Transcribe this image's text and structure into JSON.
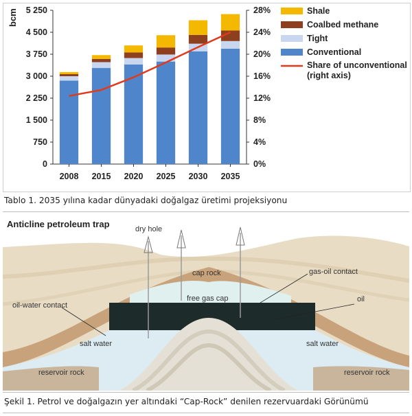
{
  "chart_data": {
    "type": "bar",
    "stacked": true,
    "categories": [
      "2008",
      "2015",
      "2020",
      "2025",
      "2030",
      "2035"
    ],
    "ylabel": "bcm",
    "ylim": [
      0,
      5250
    ],
    "yticks": [
      "0",
      "750",
      "1 500",
      "2 250",
      "3 000",
      "3 750",
      "4 500",
      "5 250"
    ],
    "y2lim": [
      0,
      28
    ],
    "y2ticks": [
      "0%",
      "4%",
      "8%",
      "12%",
      "16%",
      "20%",
      "24%",
      "28%"
    ],
    "series": [
      {
        "name": "Conventional",
        "color": "#4f86cb",
        "values": [
          2850,
          3280,
          3400,
          3500,
          3850,
          3940
        ]
      },
      {
        "name": "Tight",
        "color": "#c9d6ef",
        "values": [
          150,
          200,
          220,
          240,
          260,
          260
        ]
      },
      {
        "name": "Coalbed methane",
        "color": "#8e3f1d",
        "values": [
          70,
          110,
          190,
          240,
          300,
          360
        ]
      },
      {
        "name": "Shale",
        "color": "#f5b800",
        "values": [
          70,
          130,
          240,
          420,
          500,
          560
        ]
      }
    ],
    "line_series": {
      "name": "Share of unconventional (right axis)",
      "color": "#e03a1c",
      "values": [
        12.4,
        13.5,
        15.8,
        18.5,
        21.3,
        24.0
      ]
    },
    "legend": [
      "Shale",
      "Coalbed methane",
      "Tight",
      "Conventional",
      "Share of unconventional",
      "(right axis)"
    ],
    "grid": false,
    "legend_position": "top-right"
  },
  "captions": {
    "table": "Tablo 1. 2035 yılına kadar dünyadaki doğalgaz üretimi projeksiyonu",
    "figure": "Şekil 1. Petrol ve doğalgazın yer altındaki “Cap-Rock” denilen rezervuardaki Görünümü"
  },
  "diagram": {
    "title": "Anticline petroleum trap",
    "labels": {
      "dry_hole": "dry hole",
      "cap_rock": "cap rock",
      "gas_oil_contact": "gas-oil contact",
      "free_gas_cap": "free gas cap",
      "oil": "oil",
      "oil_water_contact": "oil-water contact",
      "salt_water_left": "salt water",
      "salt_water_right": "salt water",
      "reservoir_rock_left": "reservoir rock",
      "reservoir_rock_right": "reservoir rock"
    },
    "colors": {
      "sky": "#ffffff",
      "overburden": "#e8dcc4",
      "cap_rock": "#c8a27a",
      "gas": "#dff0ef",
      "oil": "#1d2b2a",
      "salt_water": "#dcecf2",
      "dome": "#e4e0d6",
      "reservoir": "#c9b59c"
    }
  }
}
